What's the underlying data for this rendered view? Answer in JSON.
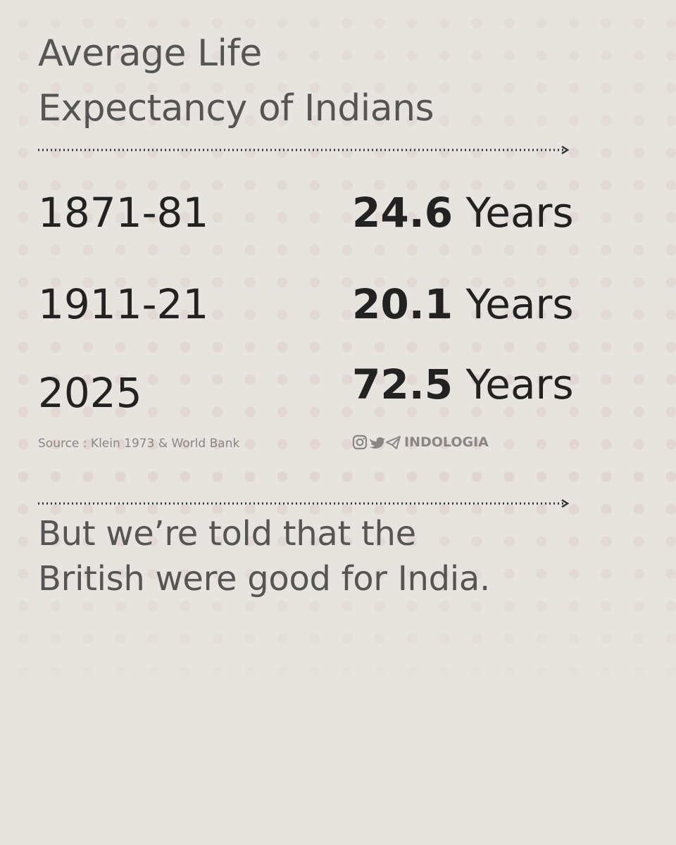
{
  "header": {
    "title_lines": [
      "Average Life",
      "Expectancy of Indians"
    ]
  },
  "table": {
    "rows": [
      {
        "period": "1871-81",
        "value": "24.6",
        "unit": "Years"
      },
      {
        "period": "1911-21",
        "value": "20.1",
        "unit": "Years"
      },
      {
        "period": "2025",
        "value": "72.5",
        "unit": "Years"
      }
    ]
  },
  "source": "Source : Klein 1973 & World Bank",
  "brand": "INDOLOGIA",
  "footer": {
    "lines": [
      "But we’re told that the",
      "British were good for India."
    ]
  }
}
